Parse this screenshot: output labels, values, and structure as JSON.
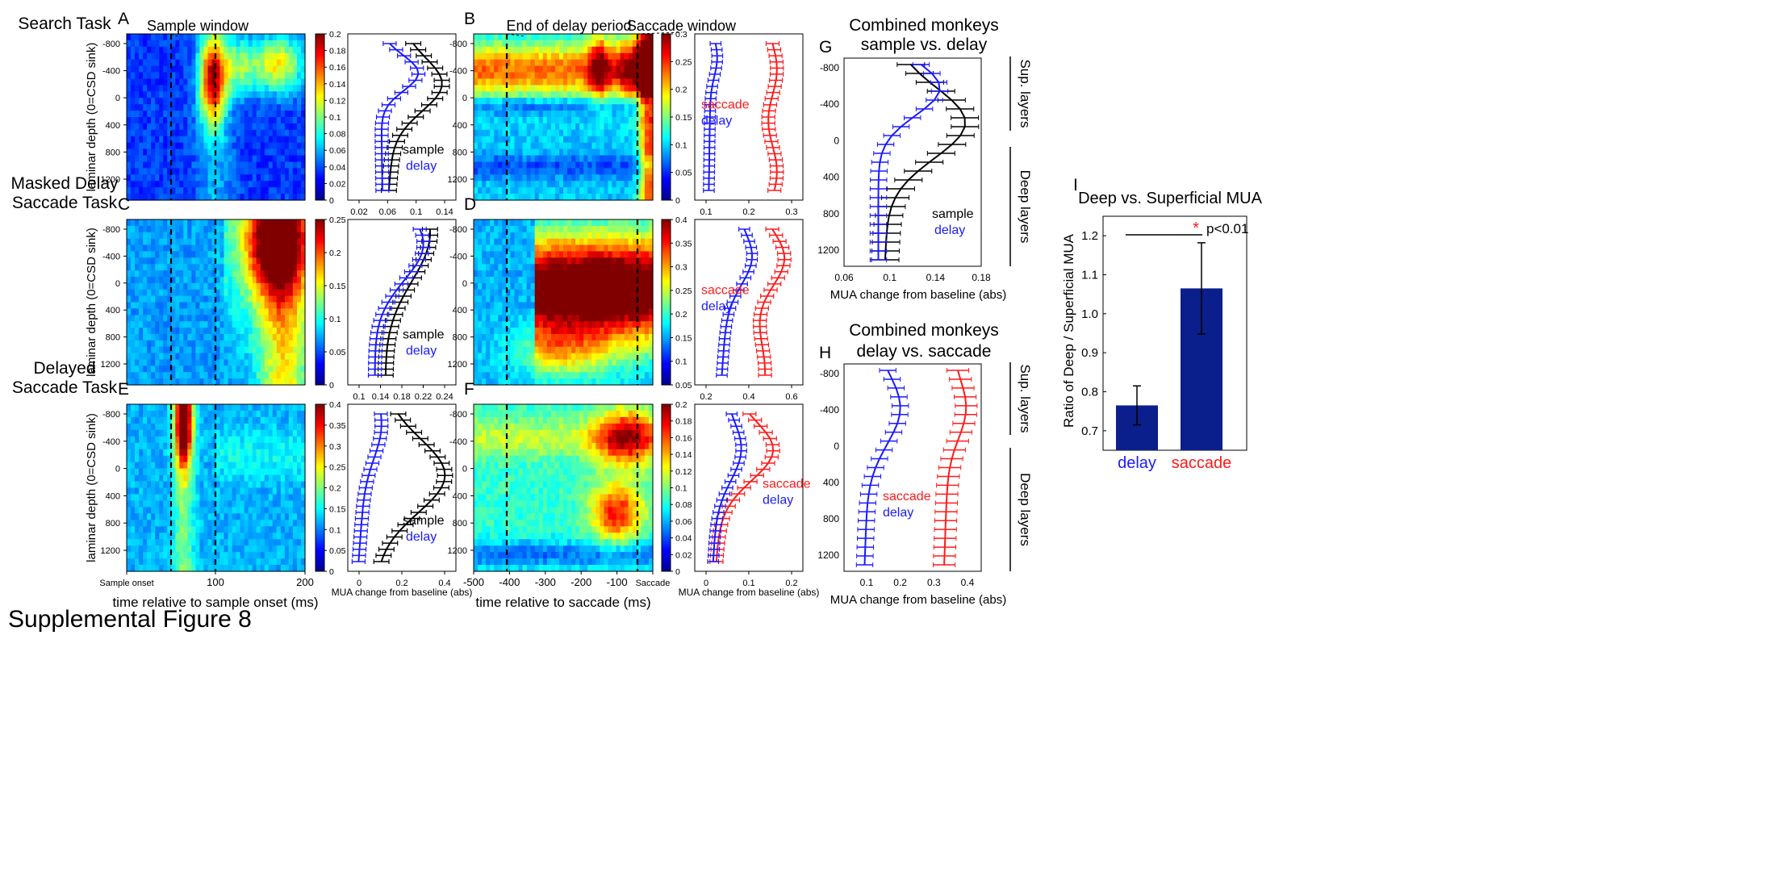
{
  "figure_caption": "Supplemental Figure 8",
  "colors": {
    "sample": "#000000",
    "delay": "#1a1aff",
    "saccade": "#ff1a1a",
    "bar": "#0a1e8c",
    "sig": "#ff1a1a"
  },
  "panel_letters": [
    "A",
    "B",
    "C",
    "D",
    "E",
    "F",
    "G",
    "H",
    "I"
  ],
  "rows": [
    {
      "task_label": [
        "Search Task"
      ],
      "color_ticks": [
        "0",
        "0.02",
        "0.04",
        "0.06",
        "0.08",
        "0.1",
        "0.12",
        "0.14",
        "0.16",
        "0.18",
        "0.2"
      ],
      "profile_ticks": [
        "0.02",
        "0.06",
        "0.1",
        "0.14"
      ],
      "sac_color_ticks": [
        "0",
        "0.05",
        "0.1",
        "0.15",
        "0.2",
        "0.25",
        "0.3"
      ],
      "sac_profile_ticks": [
        "0.1",
        "0.2",
        "0.3"
      ]
    },
    {
      "task_label": [
        "Masked Delay",
        "Saccade Task"
      ],
      "color_ticks": [
        "0",
        "0.05",
        "0.1",
        "0.15",
        "0.2",
        "0.25"
      ],
      "profile_ticks": [
        "0.1",
        "0.14",
        "0.18",
        "0.22",
        "0.24"
      ],
      "sac_color_ticks": [
        "0.05",
        "0.1",
        "0.15",
        "0.2",
        "0.25",
        "0.3",
        "0.35",
        "0.4"
      ],
      "sac_profile_ticks": [
        "0.2",
        "0.4",
        "0.6"
      ]
    },
    {
      "task_label": [
        "Delayed",
        "Saccade Task"
      ],
      "color_ticks": [
        "0",
        "0.05",
        "0.1",
        "0.15",
        "0.2",
        "0.25",
        "0.3",
        "0.35",
        "0.4"
      ],
      "profile_ticks": [
        "0",
        "0.2",
        "0.4"
      ],
      "sac_color_ticks": [
        "0",
        "0.02",
        "0.04",
        "0.06",
        "0.08",
        "0.1",
        "0.12",
        "0.14",
        "0.16",
        "0.18",
        "0.2"
      ],
      "sac_profile_ticks": [
        "0",
        "0.1",
        "0.2"
      ]
    }
  ],
  "depth_ticks": [
    "-800",
    "-400",
    "0",
    "400",
    "800",
    "1200"
  ],
  "ylabel_depth": "laminar depth (0=CSD sink)",
  "sample_xticks": [
    "Sample onset",
    "100",
    "200"
  ],
  "sample_xlabel": "time relative to sample onset (ms)",
  "saccade_xticks": [
    "-500",
    "-400",
    "-300",
    "-200",
    "-100",
    "Saccade"
  ],
  "saccade_xlabel": "time relative to saccade (ms)",
  "profile_xlabel": "MUA change from baseline (abs)",
  "annotations": {
    "sample_window": "Sample window",
    "end_delay": "End of delay period",
    "saccade_window": "Saccade window"
  },
  "legend_words": {
    "sample": "sample",
    "delay": "delay",
    "saccade": "saccade"
  },
  "combined": [
    {
      "title": [
        "Combined monkeys",
        "sample vs. delay"
      ],
      "xticks": [
        "0.06",
        "0.1",
        "0.14",
        "0.18"
      ]
    },
    {
      "title": [
        "Combined monkeys",
        "delay vs. saccade"
      ],
      "xticks": [
        "0.1",
        "0.2",
        "0.3",
        "0.4"
      ]
    }
  ],
  "combined_yticks": [
    "-800",
    "-400",
    "0",
    "400",
    "800",
    "1200"
  ],
  "layer_labels": {
    "sup": "Sup. layers",
    "deep": "Deep layers"
  },
  "chart_data": {
    "type": "bar",
    "title": "Deep vs. Superficial MUA",
    "ylabel": "Ratio of Deep / Superficial MUA",
    "categories": [
      "delay",
      "saccade"
    ],
    "values": [
      0.765,
      1.065
    ],
    "error": [
      0.05,
      0.117
    ],
    "ylim": [
      0.65,
      1.25
    ],
    "yticks": [
      "0.7",
      "0.8",
      "0.9",
      "1.0",
      "1.1",
      "1.2"
    ],
    "significance": {
      "star": "*",
      "label": "p<0.01"
    }
  }
}
